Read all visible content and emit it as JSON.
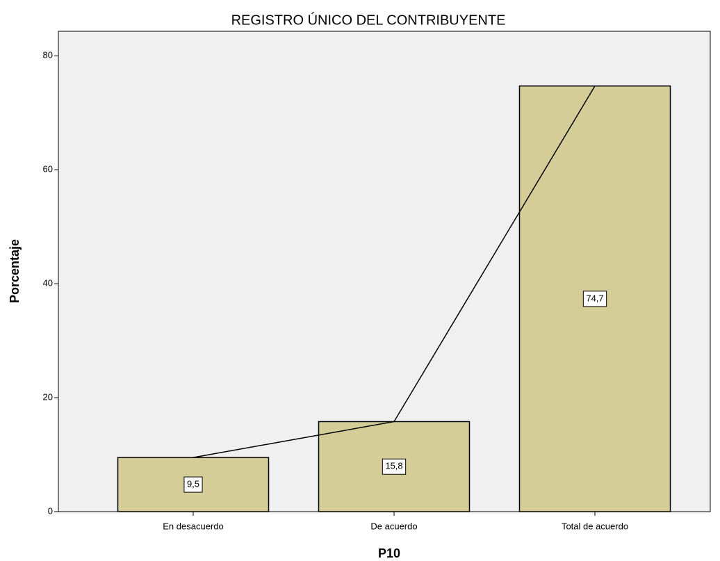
{
  "chart_data": {
    "type": "bar",
    "title": "REGISTRO ÚNICO DEL CONTRIBUYENTE",
    "x_label": "P10",
    "y_label": "Porcentaje",
    "categories": [
      "En desacuerdo",
      "De acuerdo",
      "Total de acuerdo"
    ],
    "values": [
      9.5,
      15.8,
      74.7
    ],
    "value_labels": [
      "9,5",
      "15,8",
      "74,7"
    ],
    "color": "#d4cd98",
    "line": true,
    "line_color": "#000000",
    "ylim": [
      0,
      84.3
    ],
    "yticks": [
      0,
      20,
      40,
      60,
      80
    ],
    "grid": false
  }
}
